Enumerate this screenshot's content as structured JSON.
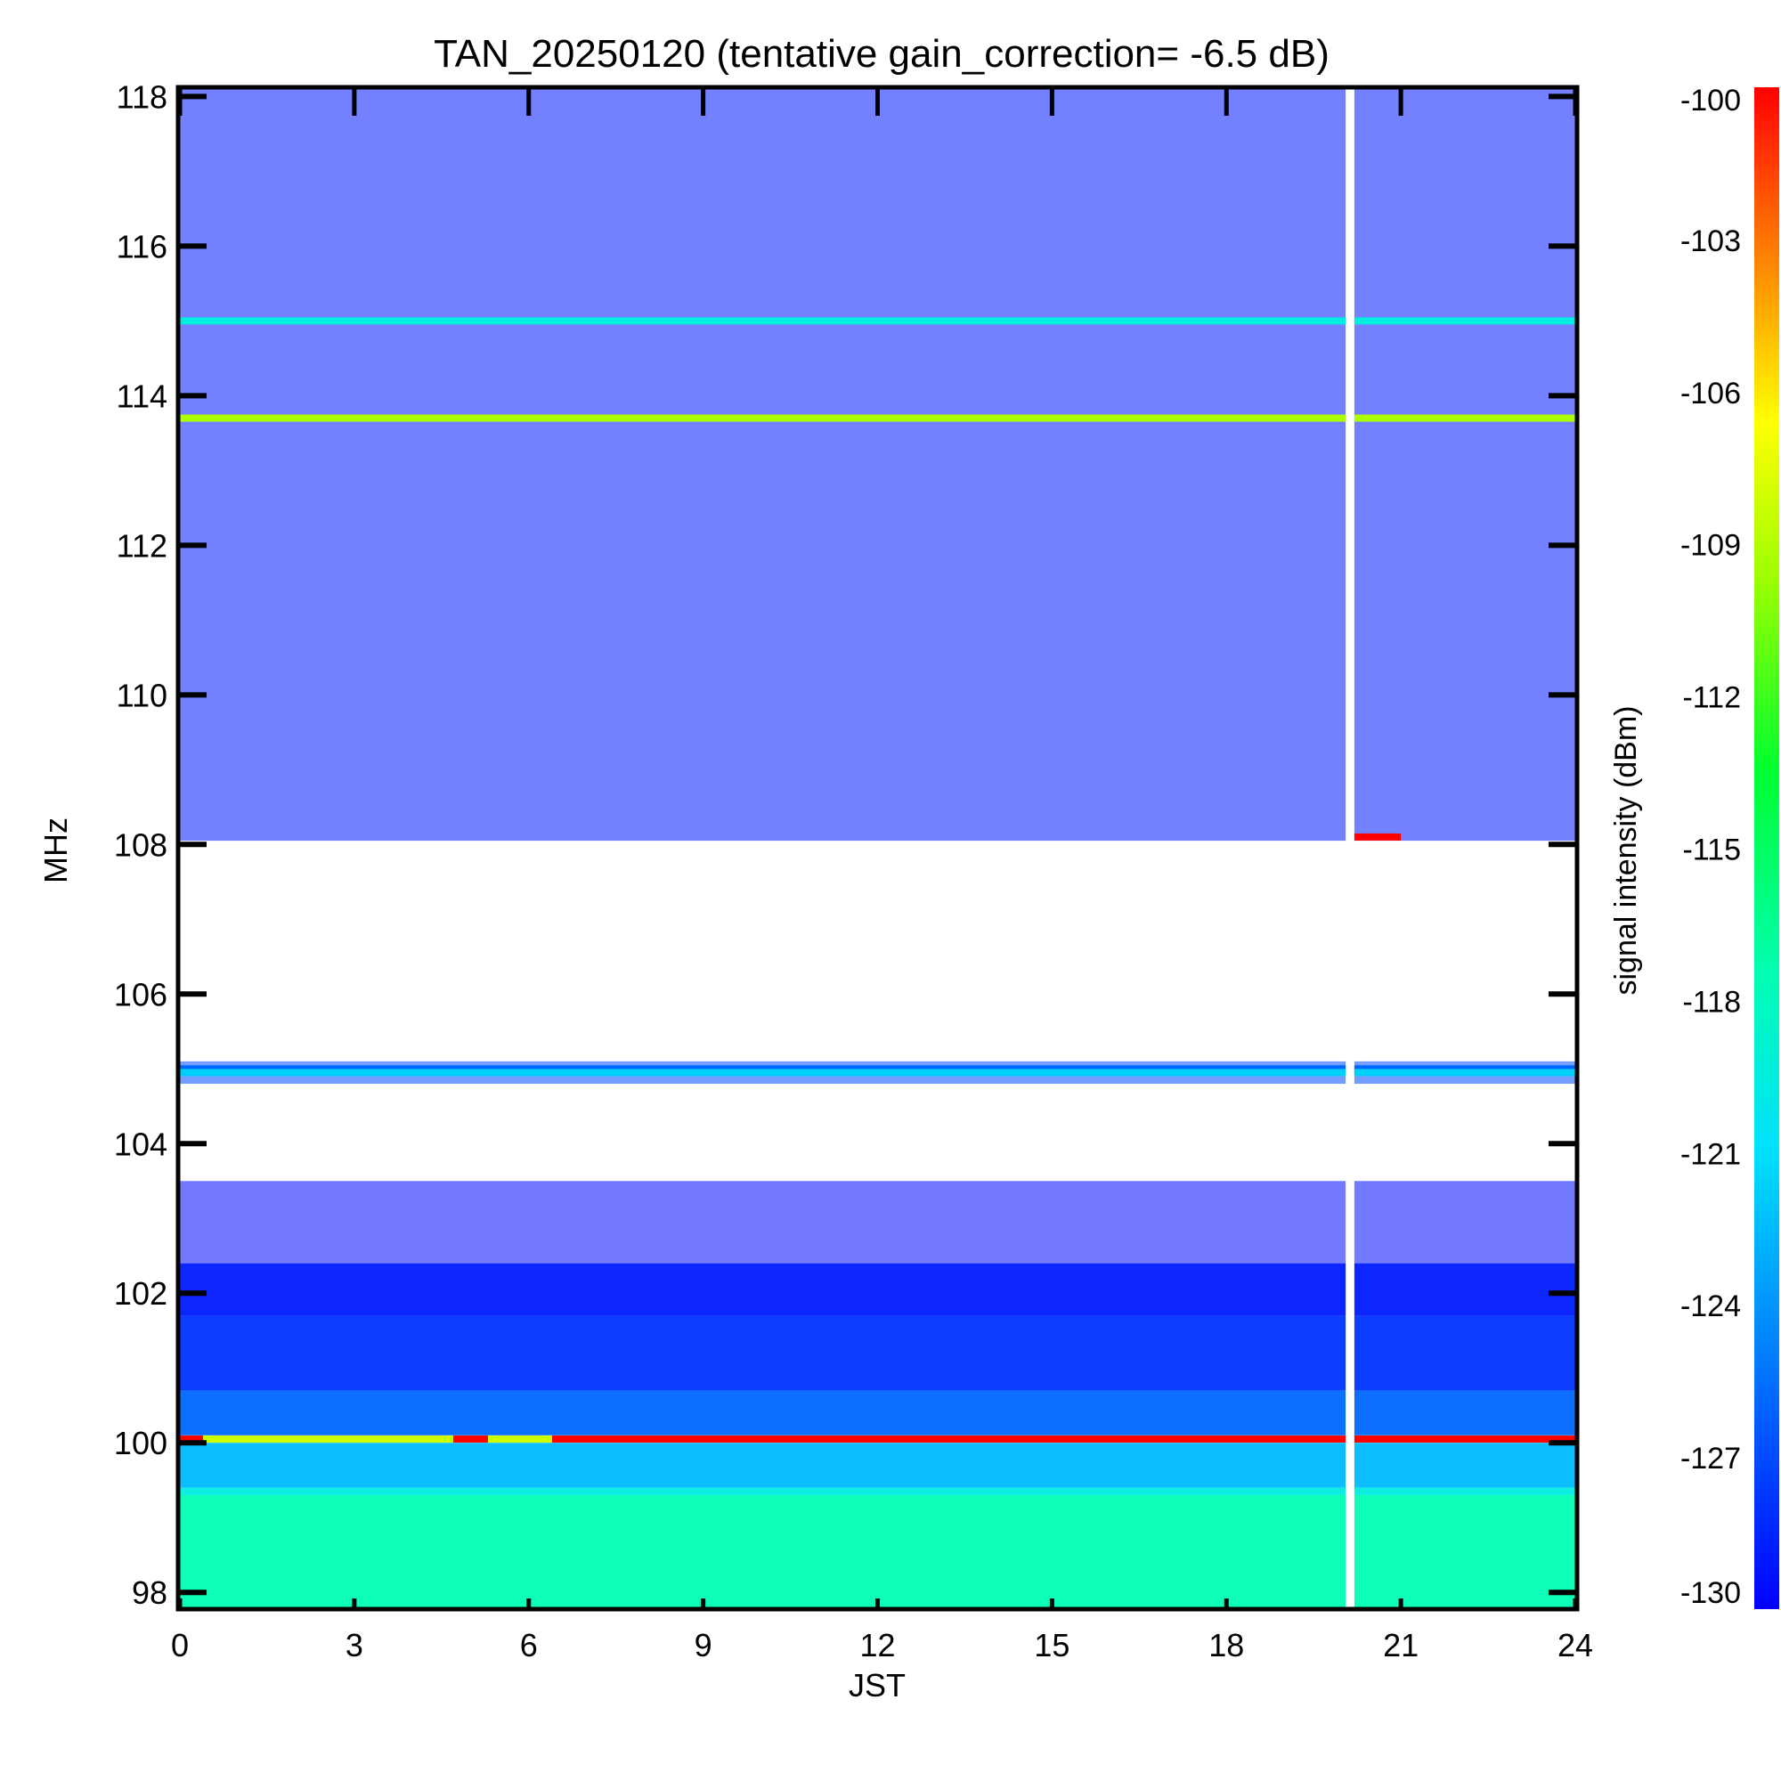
{
  "chart_data": {
    "type": "heatmap",
    "title": "TAN_20250120 (tentative gain_correction= -6.5 dB)",
    "xlabel": "JST",
    "ylabel": "MHz",
    "colorbar_label": "signal intensity (dBm)",
    "xlim": [
      0,
      24
    ],
    "ylim": [
      97.8,
      118.1
    ],
    "x_ticks": [
      "0",
      "3",
      "6",
      "9",
      "12",
      "15",
      "18",
      "21",
      "24"
    ],
    "x_tick_values": [
      0,
      3,
      6,
      9,
      12,
      15,
      18,
      21,
      24
    ],
    "y_ticks": [
      "98",
      "100",
      "102",
      "104",
      "106",
      "108",
      "110",
      "112",
      "114",
      "116",
      "118"
    ],
    "y_tick_values": [
      98,
      100,
      102,
      104,
      106,
      108,
      110,
      112,
      114,
      116,
      118
    ],
    "colorbar_range": [
      -130,
      -100
    ],
    "colorbar_ticks": [
      "-100",
      "-103",
      "-106",
      "-109",
      "-112",
      "-115",
      "-118",
      "-121",
      "-124",
      "-127",
      "-130"
    ],
    "colorbar_tick_values": [
      -100,
      -103,
      -106,
      -109,
      -112,
      -115,
      -118,
      -121,
      -124,
      -127,
      -130
    ],
    "colormap": [
      "#0000ff",
      "#0060ff",
      "#00c8ff",
      "#00ffd0",
      "#00ff40",
      "#80ff00",
      "#ffff00",
      "#ff8000",
      "#ff0000"
    ],
    "data_gap_jst": [
      20.05,
      20.2
    ],
    "frequency_bands": [
      {
        "mhz": [
          97.8,
          99.3
        ],
        "level_dbm": -118
      },
      {
        "mhz": [
          99.3,
          99.4
        ],
        "level_dbm": -120
      },
      {
        "mhz": [
          99.4,
          100.0
        ],
        "level_dbm": -123
      },
      {
        "mhz": [
          100.1,
          100.7
        ],
        "level_dbm": -126
      },
      {
        "mhz": [
          100.7,
          101.7
        ],
        "level_dbm": -128
      },
      {
        "mhz": [
          101.7,
          102.4
        ],
        "level_dbm": -129
      },
      {
        "mhz": [
          102.4,
          103.5
        ],
        "level_dbm": -129.5
      },
      {
        "mhz": [
          104.8,
          105.1
        ],
        "level_dbm": -127
      },
      {
        "mhz": [
          108.05,
          118.1
        ],
        "level_dbm": -129
      }
    ],
    "signal_lines": [
      {
        "mhz": 115.0,
        "level_dbm": -120,
        "jst": [
          0,
          24
        ]
      },
      {
        "mhz": 113.7,
        "level_dbm": -110,
        "jst": [
          0,
          24
        ]
      },
      {
        "mhz": 105.0,
        "level_dbm": -126,
        "jst": [
          0,
          24
        ]
      },
      {
        "mhz": 104.95,
        "level_dbm": -122,
        "jst": [
          0,
          24
        ]
      },
      {
        "mhz": 100.05,
        "level_dbm": -100,
        "jst": [
          0,
          0.4
        ]
      },
      {
        "mhz": 100.05,
        "level_dbm": -109,
        "jst": [
          0.4,
          4.7
        ]
      },
      {
        "mhz": 100.05,
        "level_dbm": -100,
        "jst": [
          4.7,
          5.3
        ]
      },
      {
        "mhz": 100.05,
        "level_dbm": -109,
        "jst": [
          5.3,
          6.4
        ]
      },
      {
        "mhz": 100.05,
        "level_dbm": -100,
        "jst": [
          6.4,
          24
        ]
      },
      {
        "mhz": 108.1,
        "level_dbm": -100,
        "jst": [
          20.2,
          21.0
        ]
      }
    ]
  }
}
